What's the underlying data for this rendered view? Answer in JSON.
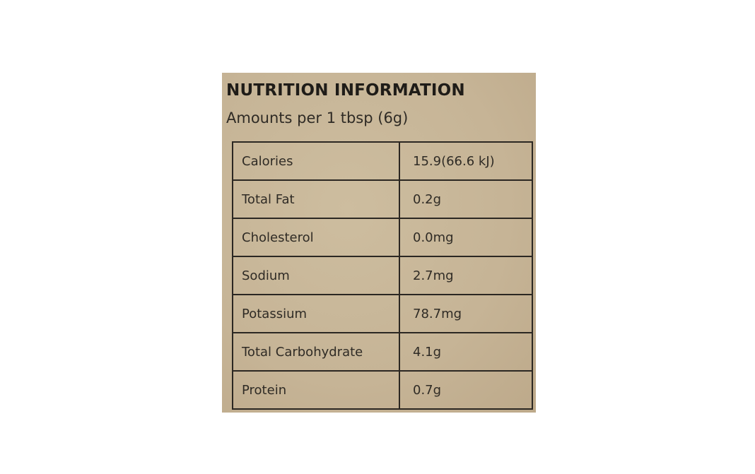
{
  "label": {
    "title": "NUTRITION INFORMATION",
    "serving": "Amounts per 1 tbsp (6g)",
    "rows": [
      {
        "nutrient": "Calories",
        "amount": "15.9(66.6 kJ)"
      },
      {
        "nutrient": "Total Fat",
        "amount": "0.2g"
      },
      {
        "nutrient": "Cholesterol",
        "amount": "0.0mg"
      },
      {
        "nutrient": "Sodium",
        "amount": "2.7mg"
      },
      {
        "nutrient": "Potassium",
        "amount": "78.7mg"
      },
      {
        "nutrient": "Total Carbohydrate",
        "amount": "4.1g"
      },
      {
        "nutrient": "Protein",
        "amount": "0.7g"
      }
    ]
  },
  "colors": {
    "label_background": "#c9b79a",
    "ink": "#2a2620",
    "page_background": "#ffffff"
  }
}
